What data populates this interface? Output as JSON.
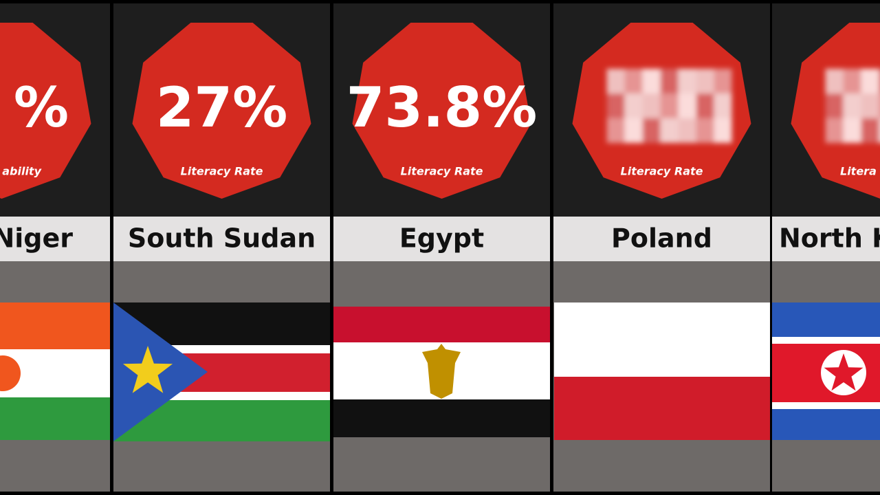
{
  "panels": [
    {
      "name": "Niger",
      "value": "%",
      "caption": "ability"
    },
    {
      "name": "South Sudan",
      "value": "27%",
      "caption": "Literacy Rate"
    },
    {
      "name": "Egypt",
      "value": "73.8%",
      "caption": "Literacy Rate"
    },
    {
      "name": "Poland",
      "caption": "Literacy Rate"
    },
    {
      "name": "North K",
      "caption": "Litera"
    }
  ]
}
